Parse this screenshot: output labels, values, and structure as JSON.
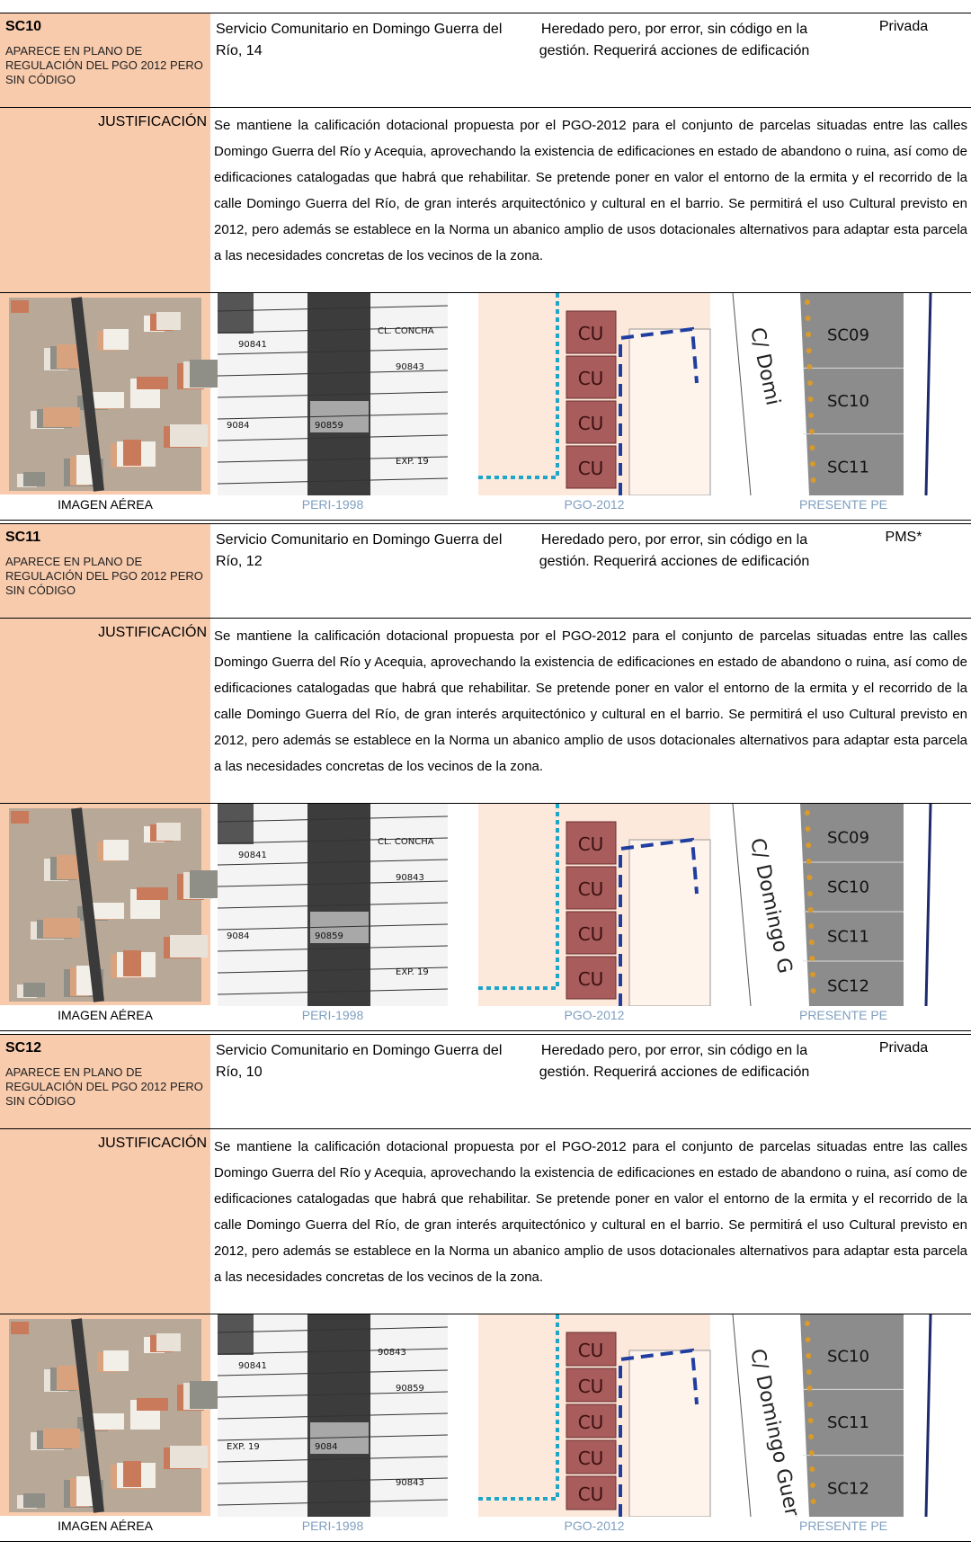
{
  "records": [
    {
      "code": "SC10",
      "note": "APARECE EN PLANO DE REGULACIÓN DEL PGO 2012 PERO SIN CÓDIGO",
      "description": "Servicio Comunitario en Domingo Guerra del Río, 14",
      "status": "Heredado pero, por error, sin código en la gestión. Requerirá acciones de edificación",
      "ownership": "Privada",
      "justification_label": "JUSTIFICACIÓN",
      "justification": "Se mantiene la calificación dotacional propuesta por el PGO-2012 para el conjunto de parcelas situadas entre las calles Domingo Guerra del Río y Acequia, aprovechando la existencia de edificaciones en estado de abandono o ruina, así como de edificaciones catalogadas que habrá que rehabilitar. Se pretende poner en valor el entorno de la ermita y el recorrido de la calle Domingo Guerra del Río, de gran interés arquitectónico y cultural en el barrio. Se permitirá el uso Cultural previsto en 2012, pero además se establece en la Norma un abanico amplio de usos dotacionales alternativos para adaptar esta parcela a las necesidades concretas de los vecinos de la zona.",
      "image_labels": [
        "IMAGEN AÉREA",
        "PERI-1998",
        "PGO-2012",
        "PRESENTE PE"
      ],
      "peri_labels": [
        "90841",
        "CL. CONCHA",
        "90843",
        "90859",
        "9084",
        "EXP. 19"
      ],
      "pgo_labels": [
        "CU",
        "CU",
        "CU",
        "CU"
      ],
      "pe_street": "C/ Domi",
      "pe_labels": [
        "SC09",
        "SC10",
        "SC11"
      ]
    },
    {
      "code": "SC11",
      "note": "APARECE EN PLANO DE REGULACIÓN DEL PGO 2012 PERO SIN CÓDIGO",
      "description": "Servicio Comunitario en Domingo Guerra del Río, 12",
      "status": "Heredado pero, por error, sin código en la gestión. Requerirá acciones de edificación",
      "ownership": "PMS*",
      "justification_label": "JUSTIFICACIÓN",
      "justification": "Se mantiene la calificación dotacional propuesta por el PGO-2012 para el conjunto de parcelas situadas entre las calles Domingo Guerra del Río y Acequia, aprovechando la existencia de edificaciones en estado de abandono o ruina, así como de edificaciones catalogadas que habrá que rehabilitar. Se pretende poner en valor el entorno de la ermita y el recorrido de la calle Domingo Guerra del Río, de gran interés arquitectónico y cultural en el barrio. Se permitirá el uso Cultural previsto en 2012, pero además se establece en la Norma un abanico amplio de usos dotacionales alternativos para adaptar esta parcela a las necesidades concretas de los vecinos de la zona.",
      "image_labels": [
        "IMAGEN AÉREA",
        "PERI-1998",
        "PGO-2012",
        "PRESENTE PE"
      ],
      "peri_labels": [
        "90841",
        "CL. CONCHA",
        "90843",
        "90859",
        "9084",
        "EXP. 19"
      ],
      "pgo_labels": [
        "CU",
        "CU",
        "CU",
        "CU"
      ],
      "pe_street": "C/ Domingo G",
      "pe_labels": [
        "SC09",
        "SC10",
        "SC11",
        "SC12"
      ]
    },
    {
      "code": "SC12",
      "note": "APARECE EN PLANO DE REGULACIÓN DEL PGO 2012 PERO SIN CÓDIGO",
      "description": "Servicio Comunitario en Domingo Guerra del Río, 10",
      "status": "Heredado pero, por error, sin código en la gestión. Requerirá acciones de edificación",
      "ownership": "Privada",
      "justification_label": "JUSTIFICACIÓN",
      "justification": "Se mantiene la calificación dotacional propuesta por el PGO-2012 para el conjunto de parcelas situadas entre las calles Domingo Guerra del Río y Acequia, aprovechando la existencia de edificaciones en estado de abandono o ruina, así como de edificaciones catalogadas que habrá que rehabilitar. Se pretende poner en valor el entorno de la ermita y el recorrido de la calle Domingo Guerra del Río, de gran interés arquitectónico y cultural en el barrio. Se permitirá el uso Cultural previsto en 2012, pero además se establece en la Norma un abanico amplio de usos dotacionales alternativos para adaptar esta parcela a las necesidades concretas de los vecinos de la zona.",
      "image_labels": [
        "IMAGEN AÉREA",
        "PERI-1998",
        "PGO-2012",
        "PRESENTE PE"
      ],
      "peri_labels": [
        "90841",
        "90843",
        "90859",
        "9084",
        "EXP. 19",
        "90843"
      ],
      "pgo_labels": [
        "CU",
        "CU",
        "CU",
        "CU",
        "CU"
      ],
      "pe_street": "C/ Domingo Guerra",
      "pe_labels": [
        "SC10",
        "SC11",
        "SC12"
      ]
    }
  ]
}
